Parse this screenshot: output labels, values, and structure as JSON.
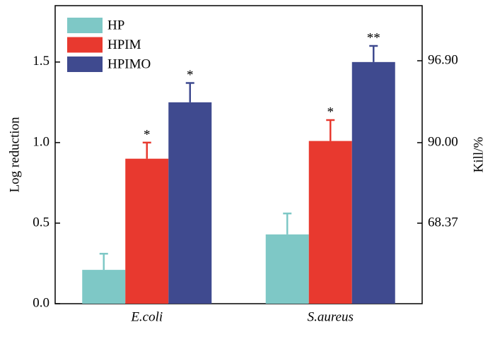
{
  "chart_data": {
    "type": "bar",
    "categories": [
      "E.coli",
      "S.aureus"
    ],
    "series": [
      {
        "name": "HP",
        "color": "#7ec8c6",
        "values": [
          0.21,
          0.43
        ],
        "errors": [
          0.1,
          0.13
        ],
        "significance": [
          null,
          null
        ]
      },
      {
        "name": "HPIM",
        "color": "#e8392f",
        "values": [
          0.9,
          1.01
        ],
        "errors": [
          0.1,
          0.13
        ],
        "significance": [
          "*",
          "*"
        ]
      },
      {
        "name": "HPIMO",
        "color": "#3f4a8f",
        "values": [
          1.25,
          1.5
        ],
        "errors": [
          0.12,
          0.1
        ],
        "significance": [
          "*",
          "**"
        ]
      }
    ],
    "ylabel": "Log reduction",
    "ylim": [
      0,
      1.85
    ],
    "yticks": [
      {
        "value": 0,
        "label": "0.0"
      },
      0.5,
      {
        "value": 1,
        "label": "1.0"
      },
      1.5
    ],
    "y2label": "Kill/%",
    "y2scale": "kill",
    "y2lim": [
      0,
      98.59
    ],
    "y2ticks": [
      68.37,
      {
        "value": 90,
        "label": "90.00"
      },
      {
        "value": 96.9,
        "label": "96.90"
      }
    ],
    "legend": "upper left"
  }
}
